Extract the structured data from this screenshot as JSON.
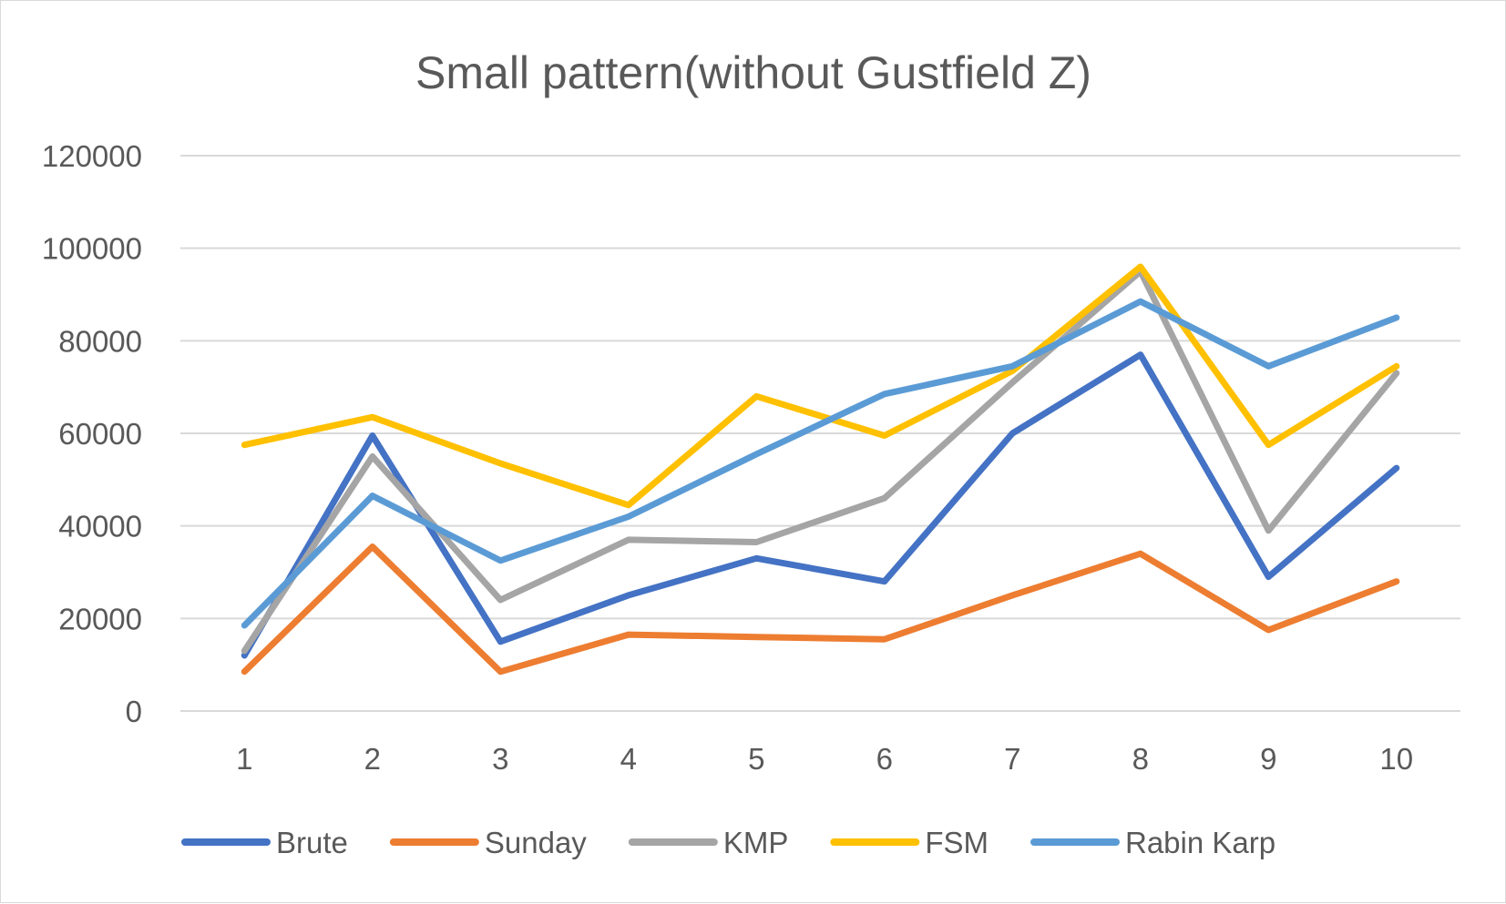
{
  "chart_data": {
    "type": "line",
    "title": "Small pattern(without Gustfield Z)",
    "xlabel": "",
    "ylabel": "",
    "categories": [
      "1",
      "2",
      "3",
      "4",
      "5",
      "6",
      "7",
      "8",
      "9",
      "10"
    ],
    "ylim": [
      0,
      120000
    ],
    "yticks": [
      "0",
      "20000",
      "40000",
      "60000",
      "80000",
      "100000",
      "120000"
    ],
    "grid": true,
    "legend_position": "bottom",
    "series": [
      {
        "name": "Brute",
        "color": "#4472C4",
        "values": [
          12000,
          59500,
          15000,
          25000,
          33000,
          28000,
          60000,
          77000,
          29000,
          52500
        ]
      },
      {
        "name": "Sunday",
        "color": "#ED7D31",
        "values": [
          8500,
          35500,
          8500,
          16500,
          16000,
          15500,
          25000,
          34000,
          17500,
          28000
        ]
      },
      {
        "name": "KMP",
        "color": "#A5A5A5",
        "values": [
          13000,
          55000,
          24000,
          37000,
          36500,
          46000,
          71000,
          95000,
          39000,
          73000
        ]
      },
      {
        "name": "FSM",
        "color": "#FFC000",
        "values": [
          57500,
          63500,
          53500,
          44500,
          68000,
          59500,
          73500,
          96000,
          57500,
          74500
        ]
      },
      {
        "name": "Rabin Karp",
        "color": "#5B9BD5",
        "values": [
          18500,
          46500,
          32500,
          42000,
          55500,
          68500,
          74500,
          88500,
          74500,
          85000
        ]
      }
    ]
  }
}
